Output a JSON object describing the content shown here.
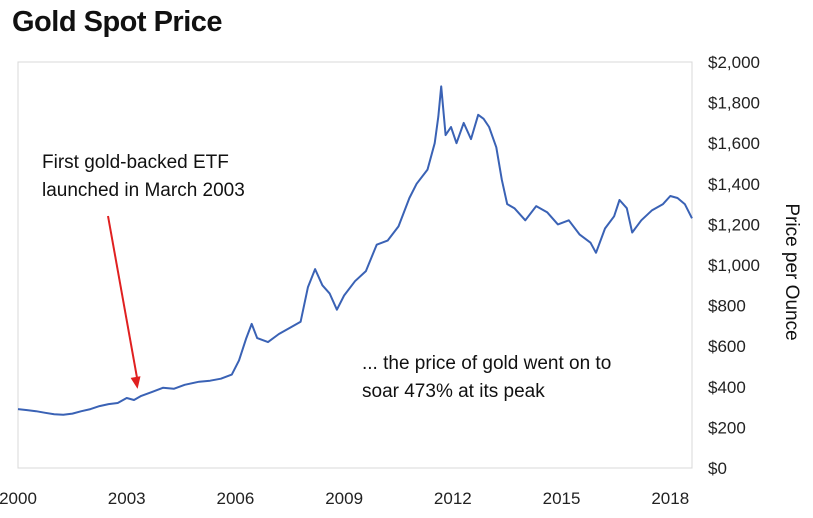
{
  "chart_data": {
    "type": "line",
    "title": "Gold Spot Price",
    "ylabel": "Price per Ounce",
    "xlabel": "",
    "ylim": [
      0,
      2000
    ],
    "xlim": [
      2000,
      2018.6
    ],
    "grid": false,
    "y_ticks": [
      {
        "value": 0,
        "label": "$0"
      },
      {
        "value": 200,
        "label": "$200"
      },
      {
        "value": 400,
        "label": "$400"
      },
      {
        "value": 600,
        "label": "$600"
      },
      {
        "value": 800,
        "label": "$800"
      },
      {
        "value": 1000,
        "label": "$1,000"
      },
      {
        "value": 1200,
        "label": "$1,200"
      },
      {
        "value": 1400,
        "label": "$1,400"
      },
      {
        "value": 1600,
        "label": "$1,600"
      },
      {
        "value": 1800,
        "label": "$1,800"
      },
      {
        "value": 2000,
        "label": "$2,000"
      }
    ],
    "x_ticks": [
      {
        "value": 2000,
        "label": "2000"
      },
      {
        "value": 2003,
        "label": "2003"
      },
      {
        "value": 2006,
        "label": "2006"
      },
      {
        "value": 2009,
        "label": "2009"
      },
      {
        "value": 2012,
        "label": "2012"
      },
      {
        "value": 2015,
        "label": "2015"
      },
      {
        "value": 2018,
        "label": "2018"
      }
    ],
    "series": [
      {
        "color": "#3a62b5",
        "x": [
          2000.0,
          2000.25,
          2000.5,
          2000.75,
          2001.0,
          2001.25,
          2001.5,
          2001.75,
          2002.0,
          2002.25,
          2002.5,
          2002.75,
          2003.0,
          2003.2,
          2003.4,
          2003.7,
          2004.0,
          2004.3,
          2004.6,
          2005.0,
          2005.3,
          2005.6,
          2005.9,
          2006.1,
          2006.3,
          2006.45,
          2006.6,
          2006.9,
          2007.2,
          2007.5,
          2007.8,
          2008.0,
          2008.2,
          2008.4,
          2008.6,
          2008.8,
          2009.0,
          2009.3,
          2009.6,
          2009.9,
          2010.2,
          2010.5,
          2010.8,
          2011.0,
          2011.3,
          2011.5,
          2011.6,
          2011.68,
          2011.8,
          2011.95,
          2012.1,
          2012.3,
          2012.5,
          2012.7,
          2012.85,
          2013.0,
          2013.2,
          2013.35,
          2013.5,
          2013.7,
          2014.0,
          2014.3,
          2014.6,
          2014.9,
          2015.2,
          2015.5,
          2015.8,
          2015.95,
          2016.2,
          2016.45,
          2016.6,
          2016.8,
          2016.95,
          2017.2,
          2017.5,
          2017.8,
          2018.0,
          2018.2,
          2018.4,
          2018.6
        ],
        "values": [
          290,
          285,
          280,
          272,
          265,
          262,
          268,
          280,
          290,
          305,
          315,
          320,
          345,
          335,
          355,
          375,
          395,
          390,
          410,
          425,
          430,
          440,
          460,
          530,
          640,
          710,
          640,
          620,
          660,
          690,
          720,
          890,
          980,
          900,
          860,
          780,
          850,
          920,
          970,
          1100,
          1120,
          1190,
          1330,
          1400,
          1470,
          1600,
          1730,
          1880,
          1640,
          1680,
          1600,
          1700,
          1620,
          1740,
          1720,
          1680,
          1580,
          1420,
          1300,
          1280,
          1220,
          1290,
          1260,
          1200,
          1220,
          1150,
          1110,
          1060,
          1180,
          1240,
          1320,
          1280,
          1160,
          1220,
          1270,
          1300,
          1340,
          1330,
          1300,
          1230
        ]
      }
    ],
    "annotations": [
      {
        "lines": [
          "First gold-backed ETF",
          "launched in March 2003"
        ],
        "arrow_to": [
          2003.3,
          360
        ],
        "arrow_color": "#e02020"
      },
      {
        "lines": [
          "... the price of gold went on to",
          "soar 473% at its peak"
        ]
      }
    ]
  }
}
